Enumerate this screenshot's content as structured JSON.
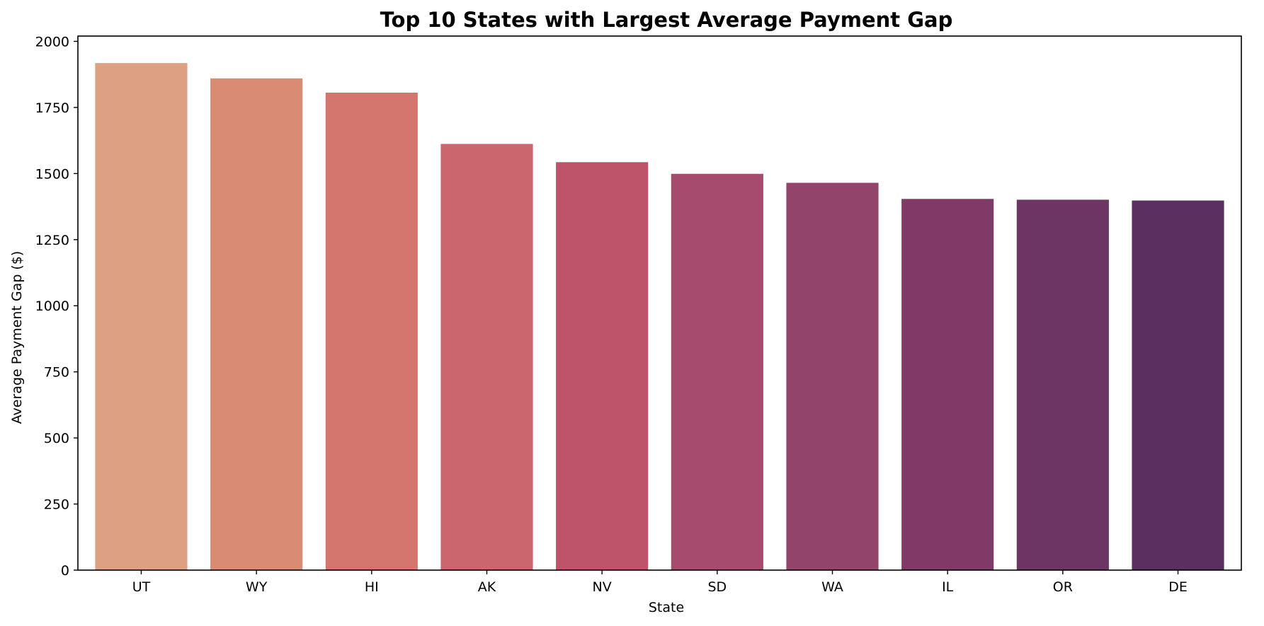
{
  "chart_data": {
    "type": "bar",
    "title": "Top 10 States with Largest Average Payment Gap",
    "xlabel": "State",
    "ylabel": "Average Payment Gap ($)",
    "categories": [
      "UT",
      "WY",
      "HI",
      "AK",
      "NV",
      "SD",
      "WA",
      "IL",
      "OR",
      "DE"
    ],
    "values": [
      1918,
      1860,
      1806,
      1612,
      1543,
      1499,
      1465,
      1404,
      1401,
      1398
    ],
    "colors": [
      "#dea083",
      "#d98b74",
      "#d4766d",
      "#c9666e",
      "#bd546a",
      "#a64b6d",
      "#93446b",
      "#7f3a68",
      "#6c3564",
      "#5b2f5f"
    ],
    "ylim": [
      0,
      2020
    ],
    "yticks": [
      0,
      250,
      500,
      750,
      1000,
      1250,
      1500,
      1750,
      2000
    ],
    "grid": false,
    "legend": "none"
  }
}
